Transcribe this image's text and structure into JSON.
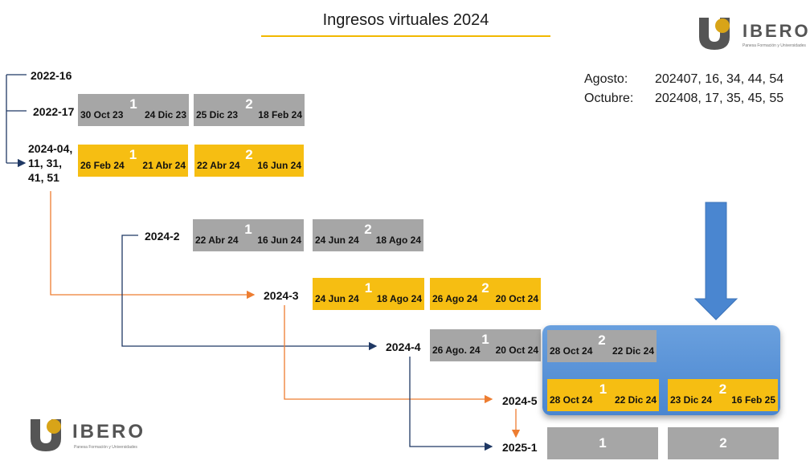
{
  "title": "Ingresos virtuales 2024",
  "brand": {
    "name": "IBERO",
    "tagline": "Panesa Formación y Universidades"
  },
  "notes": [
    {
      "label": "Agosto:",
      "value": "202407, 16, 34, 44, 54"
    },
    {
      "label": "Octubre:",
      "value": "202408, 17, 35, 45, 55"
    }
  ],
  "cohorts": {
    "c1": "2022-16",
    "c2": "2022-17",
    "c3": [
      "2024-04,",
      "11, 31,",
      "41, 51"
    ],
    "c4": "2024-2",
    "c5": "2024-3",
    "c6": "2024-4",
    "c7": "2024-5",
    "c8": "2025-1"
  },
  "periods": {
    "p2022_17_1": {
      "start": "30 Oct 23",
      "num": "1",
      "end": "24 Dic 23"
    },
    "p2022_17_2": {
      "start": "25 Dic 23",
      "num": "2",
      "end": "18 Feb 24"
    },
    "p2024_04_1": {
      "start": "26 Feb 24",
      "num": "1",
      "end": "21 Abr 24"
    },
    "p2024_04_2": {
      "start": "22 Abr 24",
      "num": "2",
      "end": "16 Jun 24"
    },
    "p2024_2_1": {
      "start": "22 Abr 24",
      "num": "1",
      "end": "16 Jun 24"
    },
    "p2024_2_2": {
      "start": "24 Jun 24",
      "num": "2",
      "end": "18 Ago 24"
    },
    "p2024_3_1": {
      "start": "24 Jun 24",
      "num": "1",
      "end": "18 Ago 24"
    },
    "p2024_3_2": {
      "start": "26 Ago 24",
      "num": "2",
      "end": "20 Oct 24"
    },
    "p2024_4_1": {
      "start": "26 Ago. 24",
      "num": "1",
      "end": "20 Oct 24"
    },
    "p2024_4_2": {
      "start": "28 Oct 24",
      "num": "2",
      "end": "22 Dic 24"
    },
    "p2024_5_1": {
      "start": "28 Oct 24",
      "num": "1",
      "end": "22 Dic 24"
    },
    "p2024_5_2": {
      "start": "23 Dic 24",
      "num": "2",
      "end": "16 Feb 25"
    },
    "p2025_1_1": {
      "num": "1"
    },
    "p2025_1_2": {
      "num": "2"
    }
  },
  "colors": {
    "gray": "#a6a6a6",
    "gold": "#f6be12",
    "blue": "#4a86d0",
    "navy": "#1f3864",
    "orange": "#ed7d31"
  }
}
